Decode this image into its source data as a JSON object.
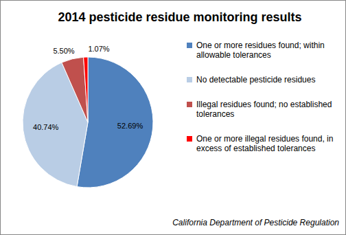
{
  "chart_data": {
    "type": "pie",
    "title": "2014 pesticide residue monitoring results",
    "categories": [
      "One or more residues found; within allowable tolerances",
      "No detectable pesticide residues",
      "Illegal residues found; no established tolerances",
      "One or more illegal residues found, in excess of established tolerances"
    ],
    "values": [
      52.69,
      40.74,
      5.5,
      1.07
    ],
    "value_labels": [
      "52.69%",
      "40.74%",
      "5.50%",
      "1.07%"
    ],
    "colors": [
      "#4f81bd",
      "#b9cde5",
      "#c0504d",
      "#ff0000"
    ],
    "data_labels": true,
    "legend": "right",
    "annotation": "California Department of Pesticide Regulation"
  }
}
